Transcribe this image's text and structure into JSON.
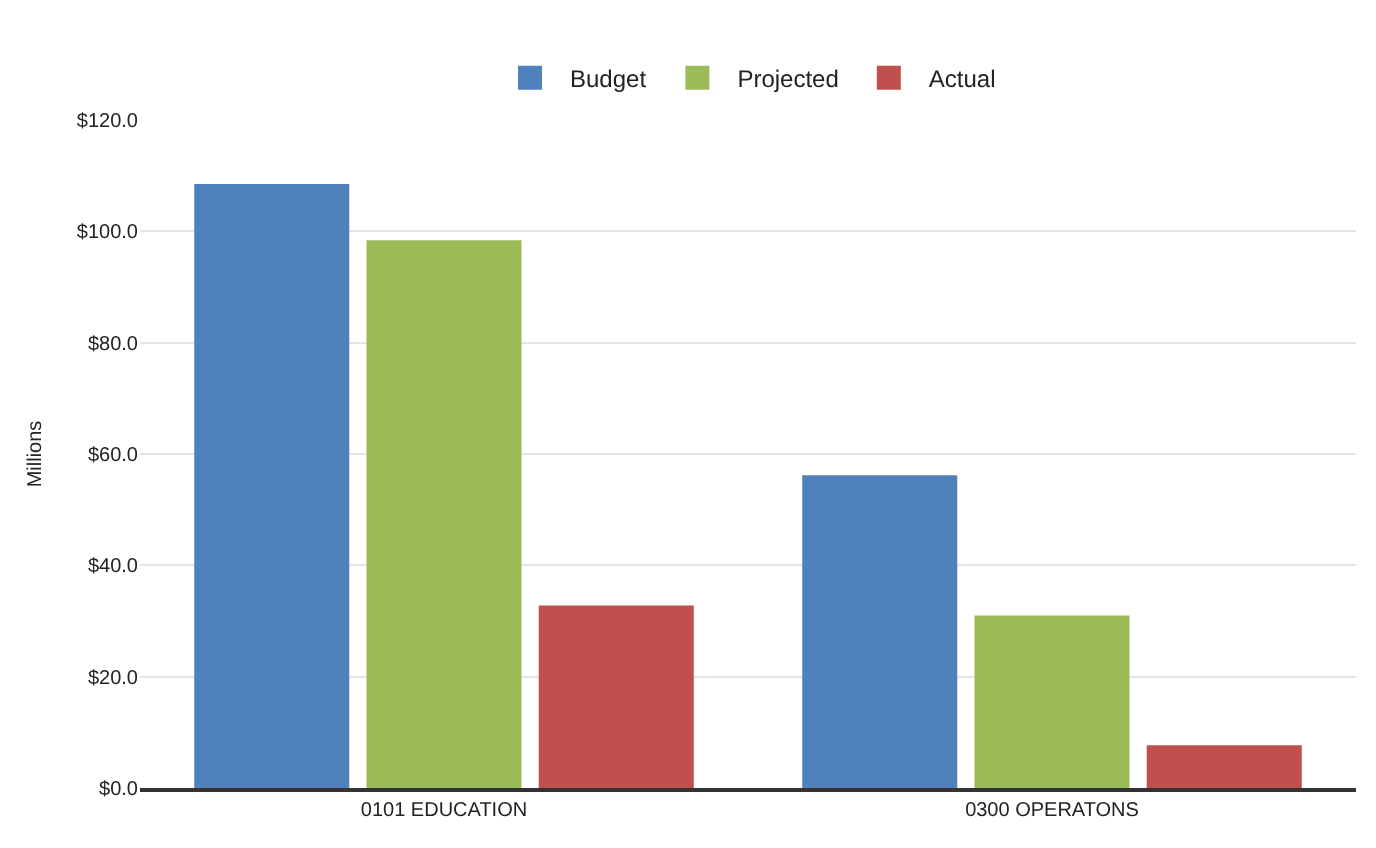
{
  "chart_data": {
    "type": "bar",
    "ylabel": "Millions",
    "categories": [
      "0101 EDUCATION",
      "0300 OPERATONS"
    ],
    "series": [
      {
        "name": "Budget",
        "color": "#4f81bd",
        "values": [
          108.5,
          56.2
        ]
      },
      {
        "name": "Projected",
        "color": "#9bbb59",
        "values": [
          98.4,
          31.0
        ]
      },
      {
        "name": "Actual",
        "color": "#c0504d",
        "values": [
          32.8,
          7.7
        ]
      }
    ],
    "ylim": [
      0,
      120
    ],
    "yticks": [
      {
        "value": 0,
        "label": "$0.0"
      },
      {
        "value": 20,
        "label": "$20.0"
      },
      {
        "value": 40,
        "label": "$40.0"
      },
      {
        "value": 60,
        "label": "$60.0"
      },
      {
        "value": 80,
        "label": "$80.0"
      },
      {
        "value": 100,
        "label": "$100.0"
      },
      {
        "value": 120,
        "label": "$120.0"
      }
    ],
    "grid": "y",
    "legend": "top"
  }
}
